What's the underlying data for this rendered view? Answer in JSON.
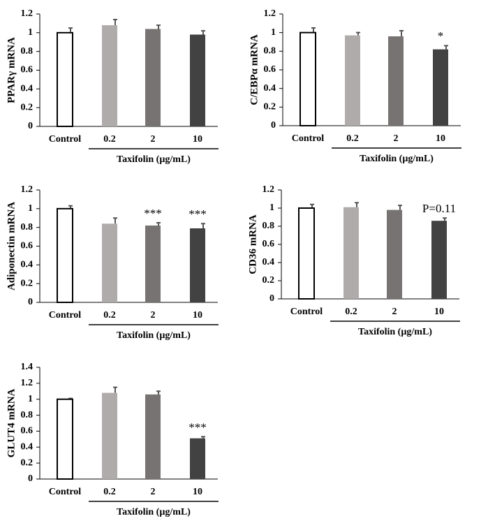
{
  "chart_data": [
    {
      "type": "bar",
      "y_label": "PPARγ mRNA",
      "categories": [
        "Control",
        "0.2",
        "2",
        "10"
      ],
      "values": [
        1.0,
        1.08,
        1.04,
        0.98
      ],
      "errors": [
        0.05,
        0.06,
        0.04,
        0.04
      ],
      "colors": [
        "#ffffff",
        "#b0abab",
        "#787373",
        "#424242"
      ],
      "ylim": [
        0,
        1.2
      ],
      "yticks": [
        0,
        0.2,
        0.4,
        0.6,
        0.8,
        1,
        1.2
      ],
      "x_group_label": "Taxifolin (µg/mL)"
    },
    {
      "type": "bar",
      "y_label": "C/EBPα mRNA",
      "categories": [
        "Control",
        "0.2",
        "2",
        "10"
      ],
      "values": [
        1.0,
        0.97,
        0.96,
        0.82
      ],
      "errors": [
        0.05,
        0.03,
        0.06,
        0.04
      ],
      "colors": [
        "#ffffff",
        "#b0abab",
        "#787373",
        "#424242"
      ],
      "ylim": [
        0,
        1.2
      ],
      "yticks": [
        0,
        0.2,
        0.4,
        0.6,
        0.8,
        1,
        1.2
      ],
      "x_group_label": "Taxifolin (µg/mL)",
      "annotations": [
        {
          "index": 3,
          "text": "*"
        }
      ]
    },
    {
      "type": "bar",
      "y_label": "Adiponectin mRNA",
      "categories": [
        "Control",
        "0.2",
        "2",
        "10"
      ],
      "values": [
        1.0,
        0.84,
        0.82,
        0.79
      ],
      "errors": [
        0.03,
        0.06,
        0.03,
        0.05
      ],
      "colors": [
        "#ffffff",
        "#b0abab",
        "#787373",
        "#424242"
      ],
      "ylim": [
        0,
        1.2
      ],
      "yticks": [
        0,
        0.2,
        0.4,
        0.6,
        0.8,
        1,
        1.2
      ],
      "x_group_label": "Taxifolin (µg/mL)",
      "annotations": [
        {
          "index": 2,
          "text": "***"
        },
        {
          "index": 3,
          "text": "***"
        }
      ]
    },
    {
      "type": "bar",
      "y_label": "CD36 mRNA",
      "categories": [
        "Control",
        "0.2",
        "2",
        "10"
      ],
      "values": [
        1.0,
        1.01,
        0.98,
        0.86
      ],
      "errors": [
        0.04,
        0.05,
        0.05,
        0.03
      ],
      "colors": [
        "#ffffff",
        "#b0abab",
        "#787373",
        "#424242"
      ],
      "ylim": [
        0,
        1.2
      ],
      "yticks": [
        0,
        0.2,
        0.4,
        0.6,
        0.8,
        1,
        1.2
      ],
      "x_group_label": "Taxifolin (µg/mL)",
      "annotations": [
        {
          "index": 3,
          "text": "P=0.11"
        }
      ]
    },
    {
      "type": "bar",
      "y_label": "GLUT4 mRNA",
      "categories": [
        "Control",
        "0.2",
        "2",
        "10"
      ],
      "values": [
        1.0,
        1.08,
        1.06,
        0.51
      ],
      "errors": [
        0.01,
        0.07,
        0.04,
        0.02
      ],
      "colors": [
        "#ffffff",
        "#b0abab",
        "#787373",
        "#424242"
      ],
      "ylim": [
        0,
        1.4
      ],
      "yticks": [
        0,
        0.2,
        0.4,
        0.6,
        0.8,
        1,
        1.2,
        1.4
      ],
      "x_group_label": "Taxifolin (µg/mL)",
      "annotations": [
        {
          "index": 3,
          "text": "***"
        }
      ]
    }
  ]
}
